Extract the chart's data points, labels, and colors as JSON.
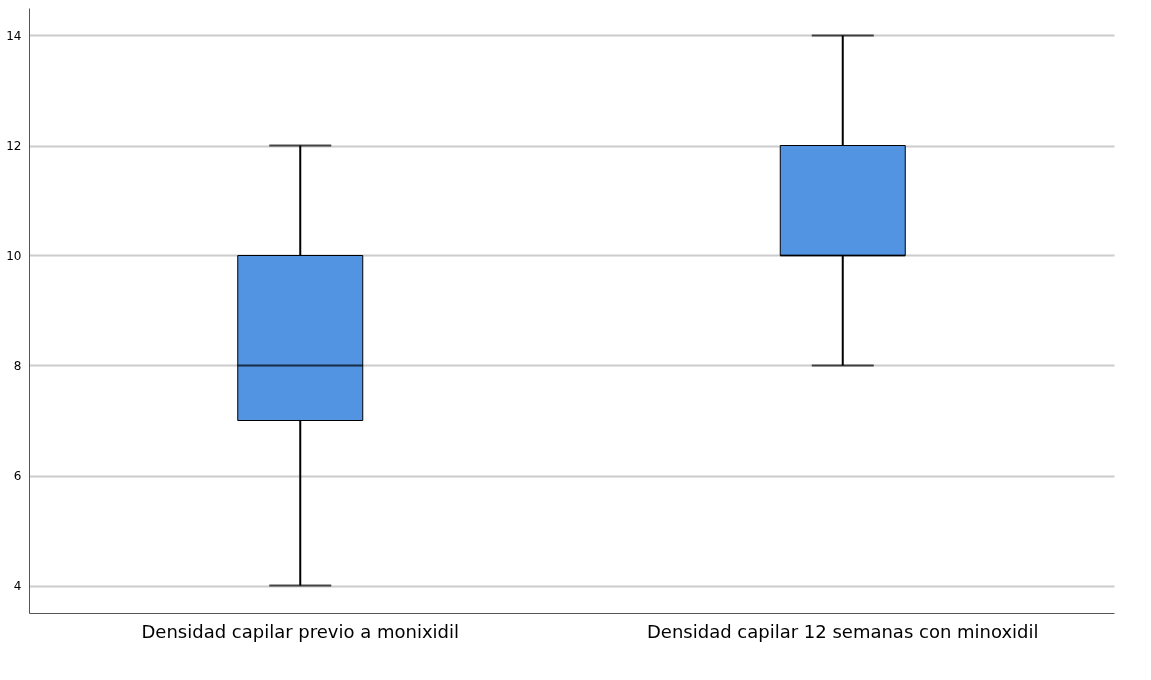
{
  "chart_data": {
    "type": "box",
    "categories": [
      "Densidad capilar previo a monixidil",
      "Densidad capilar 12 semanas con minoxidil"
    ],
    "series": [
      {
        "color": "#5294e2",
        "boxes": [
          {
            "low": 4,
            "q1": 7,
            "median": 8,
            "q3": 10,
            "high": 12
          },
          {
            "low": 8,
            "q1": 10,
            "median": 10,
            "q3": 12,
            "high": 14
          }
        ]
      }
    ],
    "ylim": [
      3.5,
      14.5
    ],
    "yticks": [
      4,
      6,
      8,
      10,
      12,
      14
    ],
    "grid": "y"
  }
}
